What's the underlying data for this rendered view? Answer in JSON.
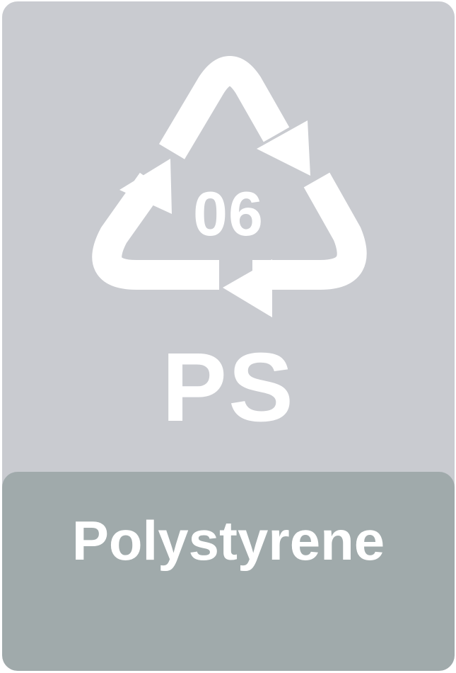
{
  "label": {
    "resin_code": "06",
    "abbreviation": "PS",
    "material_name": "Polystyrene"
  },
  "icons": {
    "symbol": "recycling-triangle-icon"
  },
  "colors": {
    "background": "#c9cbd0",
    "name_panel": "#a0aaab",
    "foreground": "#ffffff"
  }
}
